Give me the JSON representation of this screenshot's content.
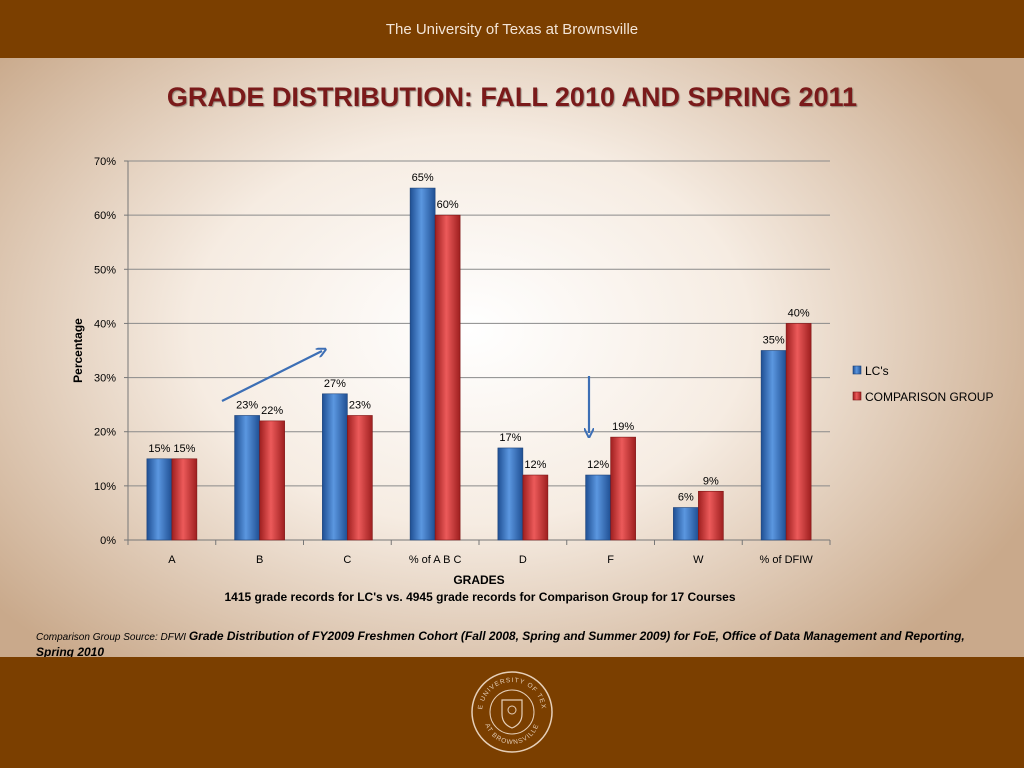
{
  "header": {
    "institution": "The University of Texas at Brownsville"
  },
  "slide": {
    "title": "GRADE DISTRIBUTION: FALL 2010 AND SPRING 2011",
    "caption": "1415  grade records for LC's  vs.  4945  grade records for Comparison Group for 17 Courses",
    "source_prefix": "Comparison Group Source: DFWI ",
    "source_text": "Grade Distribution of FY2009 Freshmen Cohort (Fall 2008, Spring and Summer 2009) for FoE, Office of Data Management and Reporting, Spring 2010"
  },
  "seal": {
    "top_text": "THE UNIVERSITY OF TEXAS",
    "bottom_text": "AT BROWNSVILLE"
  },
  "chart_data": {
    "type": "bar",
    "categories": [
      "A",
      "B",
      "C",
      "% of  A B C",
      "D",
      "F",
      "W",
      "% of DFIW"
    ],
    "series": [
      {
        "name": "LC's",
        "values": [
          15,
          23,
          27,
          65,
          17,
          12,
          6,
          35
        ],
        "color": "#3a78c8"
      },
      {
        "name": "COMPARISON GROUP",
        "values": [
          15,
          22,
          23,
          60,
          12,
          19,
          9,
          40
        ],
        "color": "#d23a3a"
      }
    ],
    "xlabel": "GRADES",
    "ylabel": "Percentage",
    "ylim": [
      0,
      70
    ],
    "yticks": [
      0,
      10,
      20,
      30,
      40,
      50,
      60,
      70
    ],
    "ytick_labels": [
      "0%",
      "10%",
      "20%",
      "30%",
      "40%",
      "50%",
      "60%",
      "70%"
    ],
    "data_label_suffix": "%",
    "grid": true,
    "legend": "right"
  },
  "colors": {
    "band": "#7b3f00",
    "title": "#7a1a1a",
    "arrow": "#3d6fb5"
  }
}
